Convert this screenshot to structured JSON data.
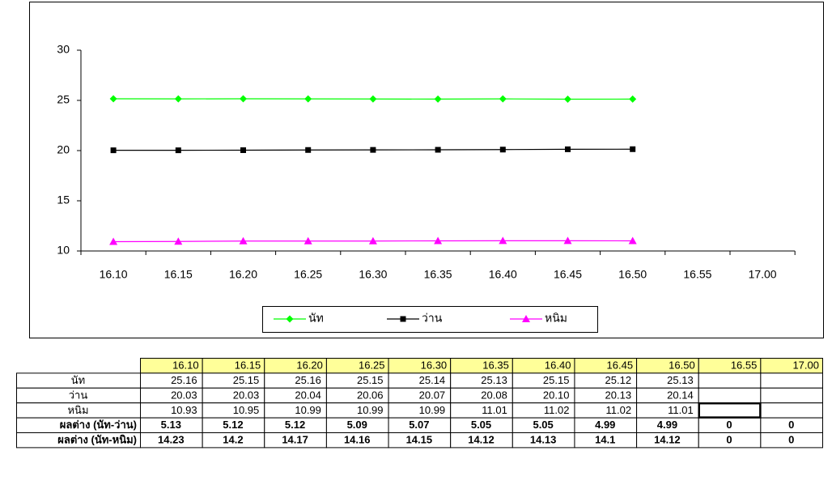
{
  "chart_data": {
    "type": "line",
    "categories": [
      "16.10",
      "16.15",
      "16.20",
      "16.25",
      "16.30",
      "16.35",
      "16.40",
      "16.45",
      "16.50",
      "16.55",
      "17.00"
    ],
    "series": [
      {
        "name": "นัท",
        "color": "#00ff00",
        "marker": "diamond",
        "values": [
          25.16,
          25.15,
          25.16,
          25.15,
          25.14,
          25.13,
          25.15,
          25.12,
          25.13,
          null,
          null
        ]
      },
      {
        "name": "ว่าน",
        "color": "#000000",
        "marker": "square",
        "values": [
          20.03,
          20.03,
          20.04,
          20.06,
          20.07,
          20.08,
          20.1,
          20.13,
          20.14,
          null,
          null
        ]
      },
      {
        "name": "หนิม",
        "color": "#ff00ff",
        "marker": "triangle",
        "values": [
          10.93,
          10.95,
          10.99,
          10.99,
          10.99,
          11.01,
          11.02,
          11.02,
          11.01,
          null,
          null
        ]
      }
    ],
    "ylim": [
      10,
      30
    ],
    "yticks": [
      10,
      15,
      20,
      25,
      30
    ],
    "grid": false,
    "legend": "bottom"
  },
  "table": {
    "rows": [
      {
        "label": "นัท",
        "color": "#000000",
        "bold": false,
        "cells": [
          "25.16",
          "25.15",
          "25.16",
          "25.15",
          "25.14",
          "25.13",
          "25.15",
          "25.12",
          "25.13"
        ]
      },
      {
        "label": "ว่าน",
        "color": "#000000",
        "bold": false,
        "cells": [
          "20.03",
          "20.03",
          "20.04",
          "20.06",
          "20.07",
          "20.08",
          "20.10",
          "20.13",
          "20.14"
        ]
      },
      {
        "label": "หนิม",
        "color": "#000000",
        "bold": false,
        "cells": [
          "10.93",
          "10.95",
          "10.99",
          "10.99",
          "10.99",
          "11.01",
          "11.02",
          "11.02",
          "11.01"
        ]
      },
      {
        "label": "ผลต่าง (นัท-ว่าน)",
        "color": "#ff0000",
        "bold": true,
        "cells": [
          "5.13",
          "5.12",
          "5.12",
          "5.09",
          "5.07",
          "5.05",
          "5.05",
          "4.99",
          "4.99",
          "0",
          "0"
        ]
      },
      {
        "label": "ผลต่าง (นัท-หนิม)",
        "color": "#0000ff",
        "bold": true,
        "cells": [
          "14.23",
          "14.2",
          "14.17",
          "14.16",
          "14.15",
          "14.12",
          "14.13",
          "14.1",
          "14.12",
          "0",
          "0"
        ]
      }
    ]
  }
}
